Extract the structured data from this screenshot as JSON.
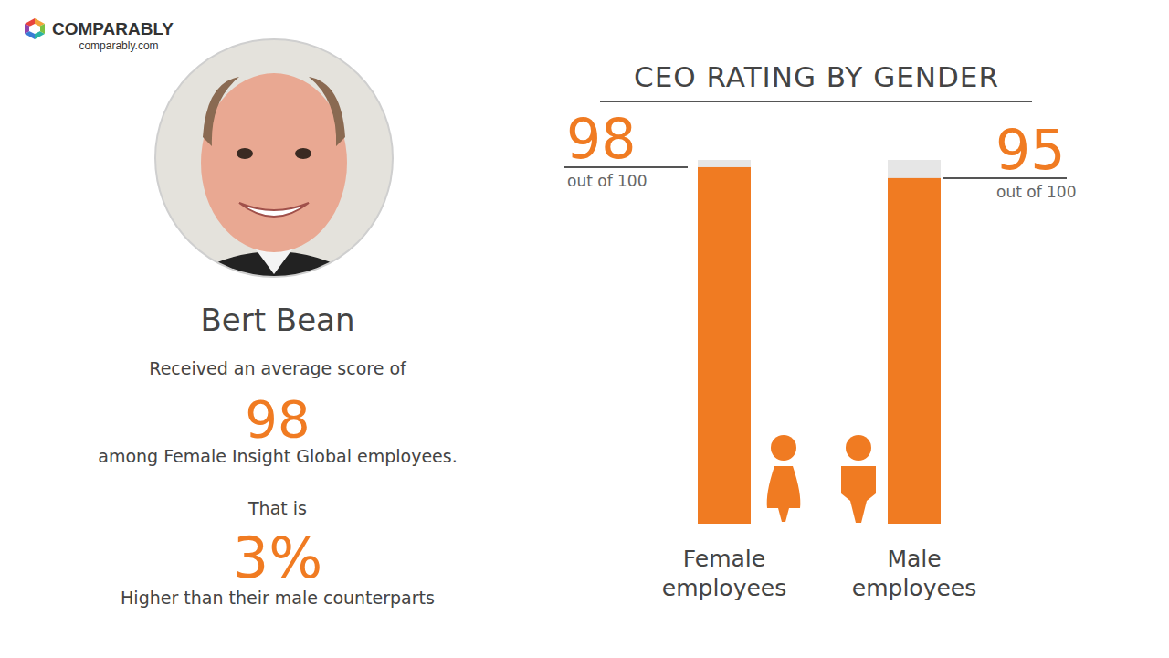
{
  "header": {
    "brand": "COMPARABLY",
    "url": "comparably.com"
  },
  "profile": {
    "name": "Bert Bean",
    "score_intro": "Received an average score of",
    "score": 98,
    "score_text": "among Female Insight Global employees.",
    "comparison_intro": "That is",
    "difference": {
      "value": 3,
      "label": "3%"
    },
    "comparison_text": "Higher than their male counterparts"
  },
  "chart_data": {
    "type": "bar",
    "title": "CEO RATING BY GENDER",
    "categories": [
      "Female employees",
      "Male employees"
    ],
    "values": [
      98,
      95
    ],
    "color": "#f07b22",
    "ylim": [
      0,
      100
    ],
    "data_labels": true,
    "data_label_note": "out of 100",
    "tick_labels": false,
    "grid": false
  }
}
